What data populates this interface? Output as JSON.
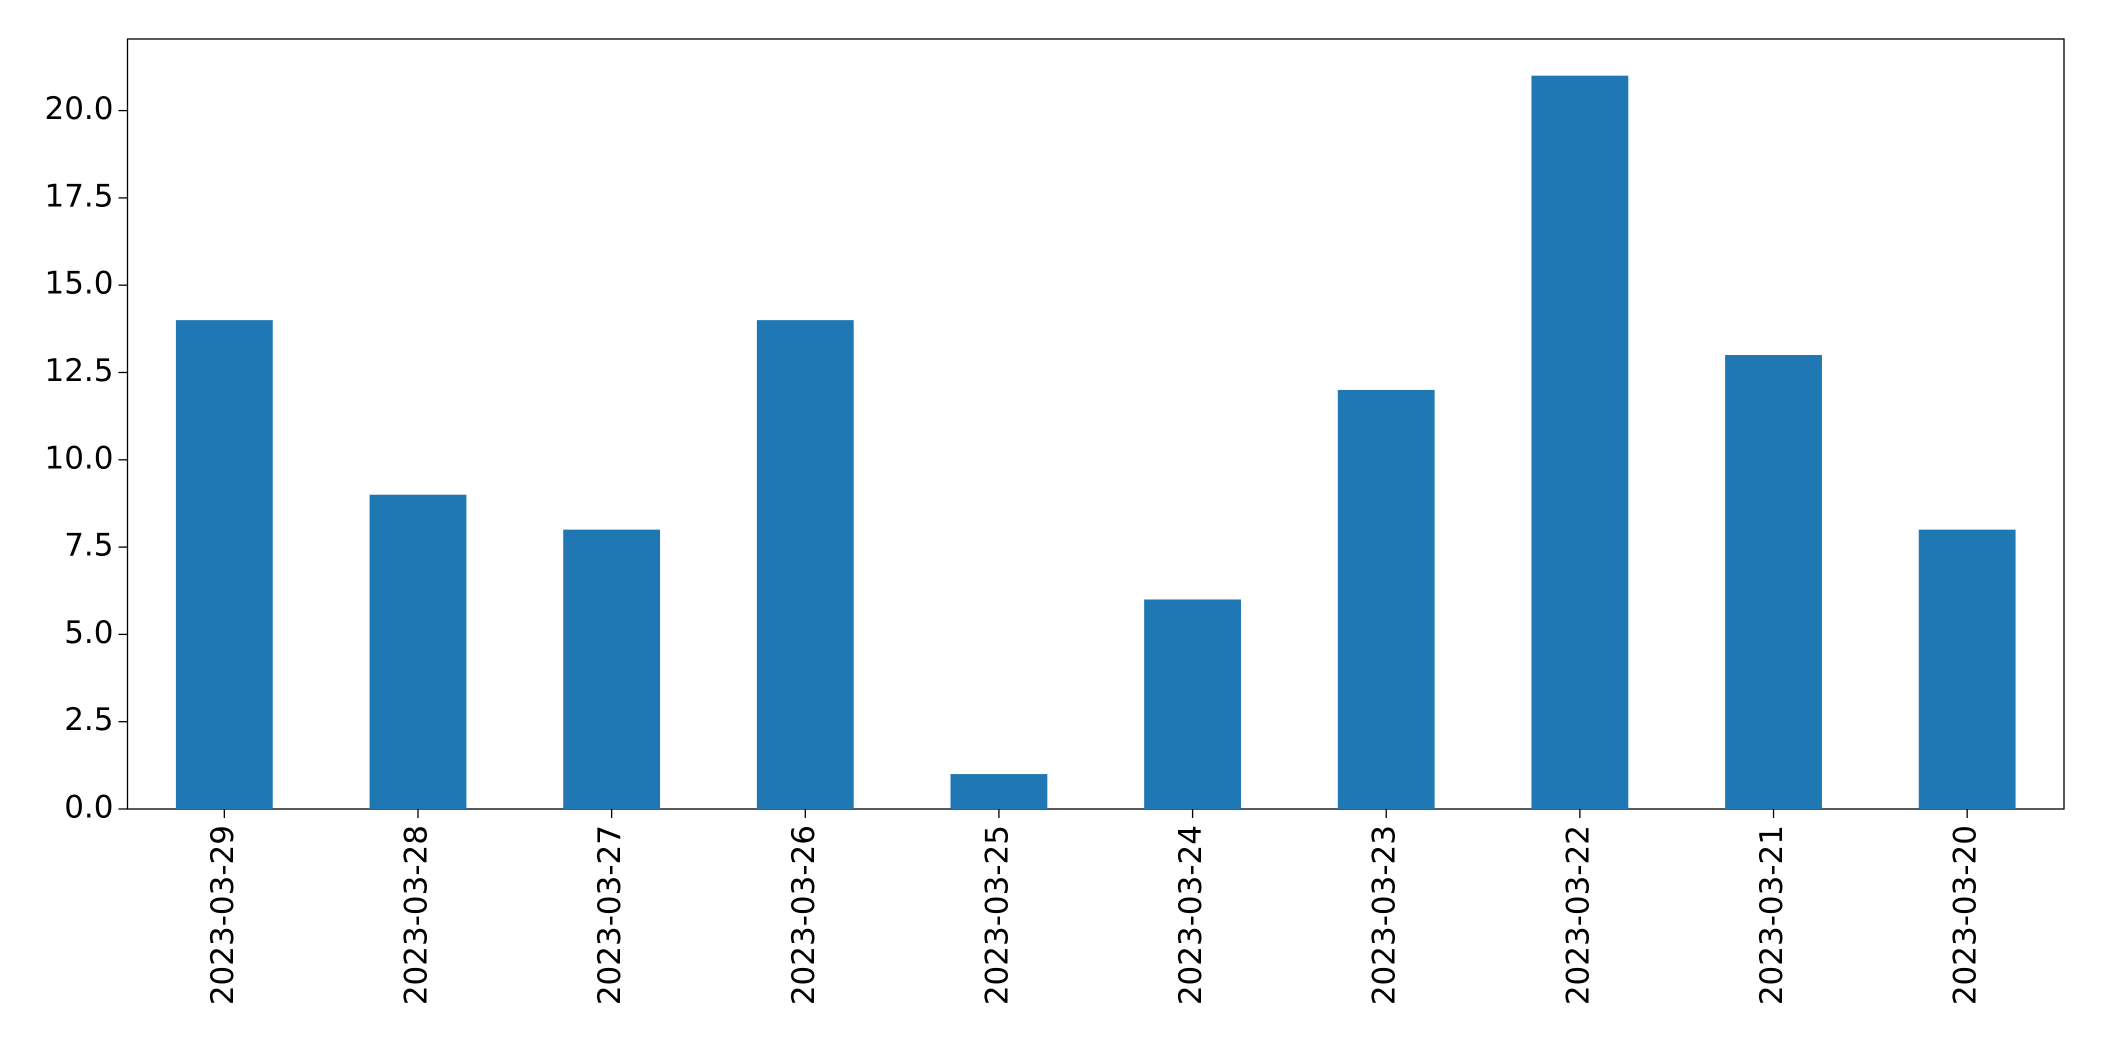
{
  "chart_data": {
    "type": "bar",
    "categories": [
      "2023-03-29",
      "2023-03-28",
      "2023-03-27",
      "2023-03-26",
      "2023-03-25",
      "2023-03-24",
      "2023-03-23",
      "2023-03-22",
      "2023-03-21",
      "2023-03-20"
    ],
    "values": [
      14,
      9,
      8,
      14,
      1,
      6,
      12,
      21,
      13,
      8
    ],
    "color": "#1f77b4",
    "ylim": [
      0,
      22.05
    ],
    "yticks": [
      {
        "value": 0,
        "label": "0.0"
      },
      2.5,
      {
        "value": 5,
        "label": "5.0"
      },
      7.5,
      {
        "value": 10,
        "label": "10.0"
      },
      12.5,
      {
        "value": 15,
        "label": "15.0"
      },
      17.5,
      {
        "value": 20,
        "label": "20.0"
      }
    ],
    "grid": false
  }
}
